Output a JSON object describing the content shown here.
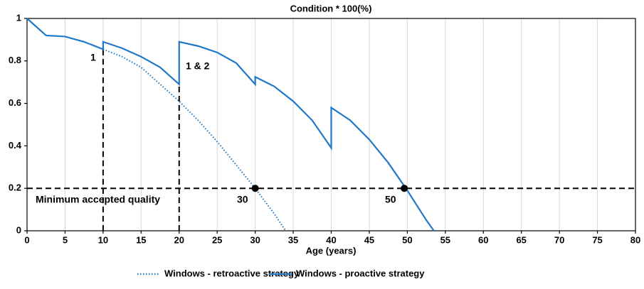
{
  "chart_data": {
    "type": "line",
    "title": "Condition * 100(%)",
    "x_label": "Age (years)",
    "xlim": [
      0,
      80
    ],
    "ylim": [
      0,
      1
    ],
    "xticks": [
      0,
      5,
      10,
      15,
      20,
      25,
      30,
      35,
      40,
      45,
      50,
      55,
      60,
      65,
      70,
      75,
      80
    ],
    "yticks": [
      0,
      0.2,
      0.4,
      0.6,
      0.8,
      1
    ],
    "xgrid": true,
    "series": [
      {
        "name": "Windows - retroactive strategy",
        "color": "#1f78c8",
        "style": "dotted",
        "x": [
          10,
          12.5,
          15,
          17.5,
          20,
          22.5,
          25,
          27.5,
          30,
          32.5,
          34
        ],
        "values": [
          0.855,
          0.82,
          0.77,
          0.69,
          0.61,
          0.52,
          0.42,
          0.31,
          0.2,
          0.08,
          0
        ]
      },
      {
        "name": "Windows - proactive strategy",
        "color": "#1f78c8",
        "style": "solid",
        "x": [
          0,
          2.5,
          5,
          7.5,
          10,
          10,
          12.5,
          15,
          17.5,
          20,
          20,
          22.5,
          25,
          27.5,
          30,
          30,
          32.5,
          35,
          37.5,
          40,
          40,
          42.5,
          45,
          47.5,
          50,
          52.5,
          53.5
        ],
        "values": [
          1,
          0.92,
          0.915,
          0.89,
          0.855,
          0.89,
          0.86,
          0.82,
          0.77,
          0.69,
          0.89,
          0.87,
          0.84,
          0.79,
          0.69,
          0.725,
          0.68,
          0.61,
          0.52,
          0.39,
          0.58,
          0.52,
          0.43,
          0.32,
          0.19,
          0.05,
          0
        ]
      }
    ],
    "threshold": 0.2,
    "interventions": [
      {
        "x": 10,
        "y": 0.855
      },
      {
        "x": 20,
        "y": 0.69
      }
    ],
    "markers": [
      {
        "x": 30,
        "y": 0.2
      },
      {
        "x": 49.6,
        "y": 0.2
      }
    ],
    "annotations": [
      "1",
      "1 & 2",
      "30",
      "50",
      "Minimum accepted quality"
    ]
  }
}
